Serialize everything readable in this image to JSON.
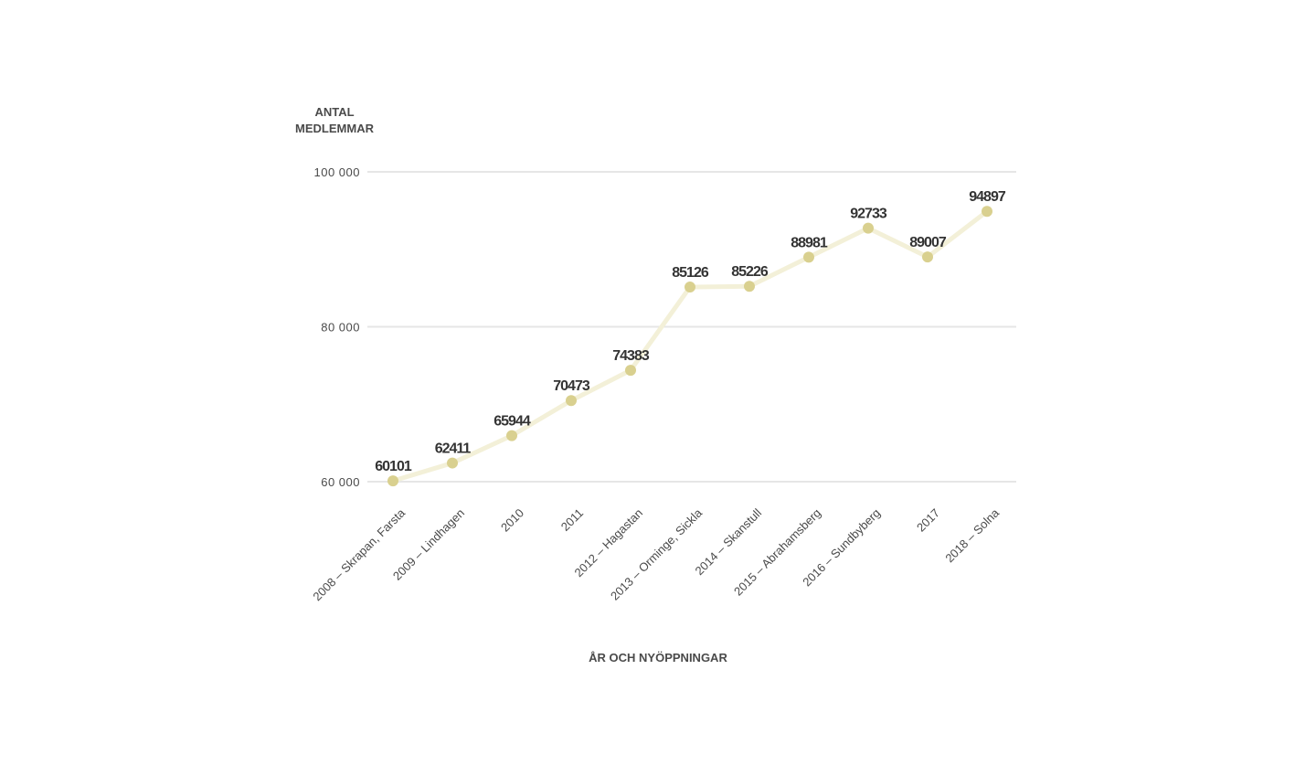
{
  "chart_data": {
    "type": "line",
    "ylabel_lines": [
      "ANTAL",
      "MEDLEMMAR"
    ],
    "xlabel": "ÅR OCH NYÖPPNINGAR",
    "ylim": [
      60000,
      100000
    ],
    "y_ticks": [
      {
        "value": 100000,
        "label": "100 000"
      },
      {
        "value": 80000,
        "label": "80 000"
      },
      {
        "value": 60000,
        "label": "60 000"
      }
    ],
    "grid": true,
    "legend": "none",
    "colors": {
      "line": "#f3f0d8",
      "point": "#d9d08f",
      "grid": "#e6e6e6",
      "text": "#4a4a4a",
      "data_label": "#333333"
    },
    "categories": [
      "2008 – Skrapan, Farsta",
      "2009 – Lindhagen",
      "2010",
      "2011",
      "2012 – Hagastan",
      "2013 – Orminge, Sickla",
      "2014 – Skanstull",
      "2015 – Abrahamsberg",
      "2016 – Sundbyberg",
      "2017",
      "2018 – Solna"
    ],
    "series": [
      {
        "values": [
          60101,
          62411,
          65944,
          70473,
          74383,
          85126,
          85226,
          88981,
          92733,
          89007,
          94897
        ],
        "value_labels": [
          "60101",
          "62411",
          "65944",
          "70473",
          "74383",
          "85126",
          "85226",
          "88981",
          "92733",
          "89007",
          "94897"
        ]
      }
    ]
  }
}
